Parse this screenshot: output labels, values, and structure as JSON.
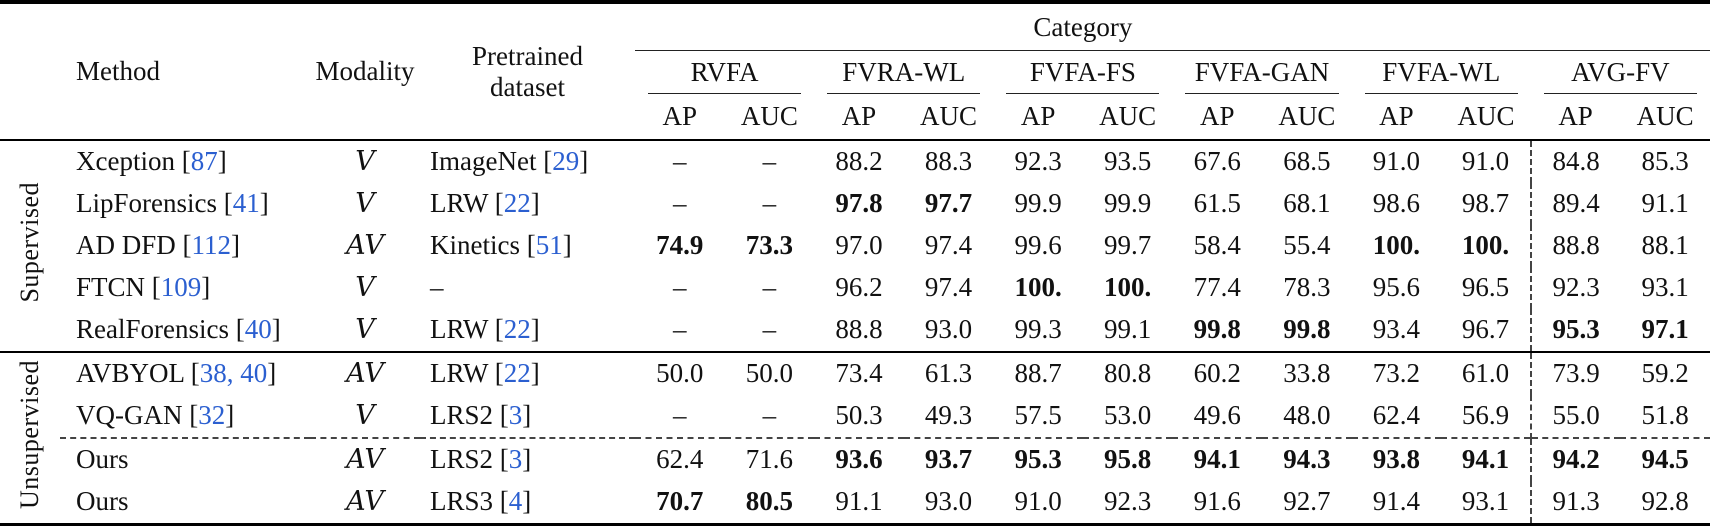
{
  "colors": {
    "cite": "#2b5fd0",
    "rule": "#000000",
    "text": "#111111"
  },
  "header": {
    "method": "Method",
    "modality": "Modality",
    "pretrained": "Pretrained dataset",
    "category": "Category",
    "groups": [
      "RVFA",
      "FVRA-WL",
      "FVFA-FS",
      "FVFA-GAN",
      "FVFA-WL",
      "AVG-FV"
    ],
    "subcols": [
      "AP",
      "AUC"
    ]
  },
  "sections": [
    {
      "label": "Supervised",
      "rows": [
        {
          "method": "Xception",
          "cite": "87",
          "modality": "V",
          "pretrained": "ImageNet",
          "pretrained_cite": "29",
          "values": [
            "–",
            "–",
            "88.2",
            "88.3",
            "92.3",
            "93.5",
            "67.6",
            "68.5",
            "91.0",
            "91.0",
            "84.8",
            "85.3"
          ],
          "bold": []
        },
        {
          "method": "LipForensics",
          "cite": "41",
          "modality": "V",
          "pretrained": "LRW",
          "pretrained_cite": "22",
          "values": [
            "–",
            "–",
            "97.8",
            "97.7",
            "99.9",
            "99.9",
            "61.5",
            "68.1",
            "98.6",
            "98.7",
            "89.4",
            "91.1"
          ],
          "bold": [
            2,
            3
          ]
        },
        {
          "method": "AD DFD",
          "cite": "112",
          "modality": "AV",
          "pretrained": "Kinetics",
          "pretrained_cite": "51",
          "values": [
            "74.9",
            "73.3",
            "97.0",
            "97.4",
            "99.6",
            "99.7",
            "58.4",
            "55.4",
            "100.",
            "100.",
            "88.8",
            "88.1"
          ],
          "bold": [
            0,
            1,
            8,
            9
          ]
        },
        {
          "method": "FTCN",
          "cite": "109",
          "modality": "V",
          "pretrained": "–",
          "pretrained_cite": "",
          "values": [
            "–",
            "–",
            "96.2",
            "97.4",
            "100.",
            "100.",
            "77.4",
            "78.3",
            "95.6",
            "96.5",
            "92.3",
            "93.1"
          ],
          "bold": [
            4,
            5
          ]
        },
        {
          "method": "RealForensics",
          "cite": "40",
          "modality": "V",
          "pretrained": "LRW",
          "pretrained_cite": "22",
          "values": [
            "–",
            "–",
            "88.8",
            "93.0",
            "99.3",
            "99.1",
            "99.8",
            "99.8",
            "93.4",
            "96.7",
            "95.3",
            "97.1"
          ],
          "bold": [
            6,
            7,
            10,
            11
          ]
        }
      ]
    },
    {
      "label": "Unsupervised",
      "rows": [
        {
          "method": "AVBYOL",
          "cite": "38, 40",
          "modality": "AV",
          "pretrained": "LRW",
          "pretrained_cite": "22",
          "values": [
            "50.0",
            "50.0",
            "73.4",
            "61.3",
            "88.7",
            "80.8",
            "60.2",
            "33.8",
            "73.2",
            "61.0",
            "73.9",
            "59.2"
          ],
          "bold": []
        },
        {
          "method": "VQ-GAN",
          "cite": "32",
          "modality": "V",
          "pretrained": "LRS2",
          "pretrained_cite": "3",
          "values": [
            "–",
            "–",
            "50.3",
            "49.3",
            "57.5",
            "53.0",
            "49.6",
            "48.0",
            "62.4",
            "56.9",
            "55.0",
            "51.8"
          ],
          "bold": []
        },
        {
          "method": "Ours",
          "cite": "",
          "modality": "AV",
          "pretrained": "LRS2",
          "pretrained_cite": "3",
          "dashed_above": true,
          "values": [
            "62.4",
            "71.6",
            "93.6",
            "93.7",
            "95.3",
            "95.8",
            "94.1",
            "94.3",
            "93.8",
            "94.1",
            "94.2",
            "94.5"
          ],
          "bold": [
            2,
            3,
            4,
            5,
            6,
            7,
            8,
            9,
            10,
            11
          ]
        },
        {
          "method": "Ours",
          "cite": "",
          "modality": "AV",
          "pretrained": "LRS3",
          "pretrained_cite": "4",
          "values": [
            "70.7",
            "80.5",
            "91.1",
            "93.0",
            "91.0",
            "92.3",
            "91.6",
            "92.7",
            "91.4",
            "93.1",
            "91.3",
            "92.8"
          ],
          "bold": [
            0,
            1
          ]
        }
      ]
    }
  ]
}
